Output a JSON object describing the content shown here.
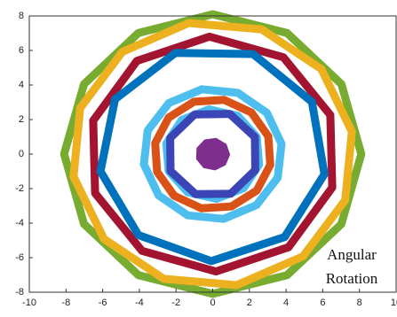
{
  "chart_data": {
    "type": "rings",
    "series": [
      {
        "color": "#77ac30",
        "radius": 8.1,
        "sides": 12
      },
      {
        "color": "#edb120",
        "radius": 7.7,
        "sides": 12
      },
      {
        "color": "#a2142f",
        "radius": 6.8,
        "sides": 10
      },
      {
        "color": "#0072bd",
        "radius": 6.2,
        "sides": 9
      },
      {
        "color": "#4dbeee",
        "radius": 3.8,
        "sides": 12
      },
      {
        "color": "#d95319",
        "radius": 3.2,
        "sides": 12
      },
      {
        "color": "#4dbeee",
        "radius": 2.6,
        "sides": 10
      },
      {
        "color": "#3b45b5",
        "radius": 2.5,
        "sides": 8
      },
      {
        "color": "#7e2f8e",
        "radius": 0.9,
        "sides": 9,
        "filled": true
      }
    ],
    "annotations": [
      "Angular",
      "Rotation"
    ],
    "xlim": [
      -10,
      10
    ],
    "xticks": [
      -10,
      -8,
      -6,
      -4,
      -2,
      0,
      2,
      4,
      6,
      8,
      10
    ],
    "ylim": [
      -8,
      8
    ],
    "yticks": [
      -8,
      -6,
      -4,
      -2,
      0,
      2,
      4,
      6,
      8
    ]
  }
}
